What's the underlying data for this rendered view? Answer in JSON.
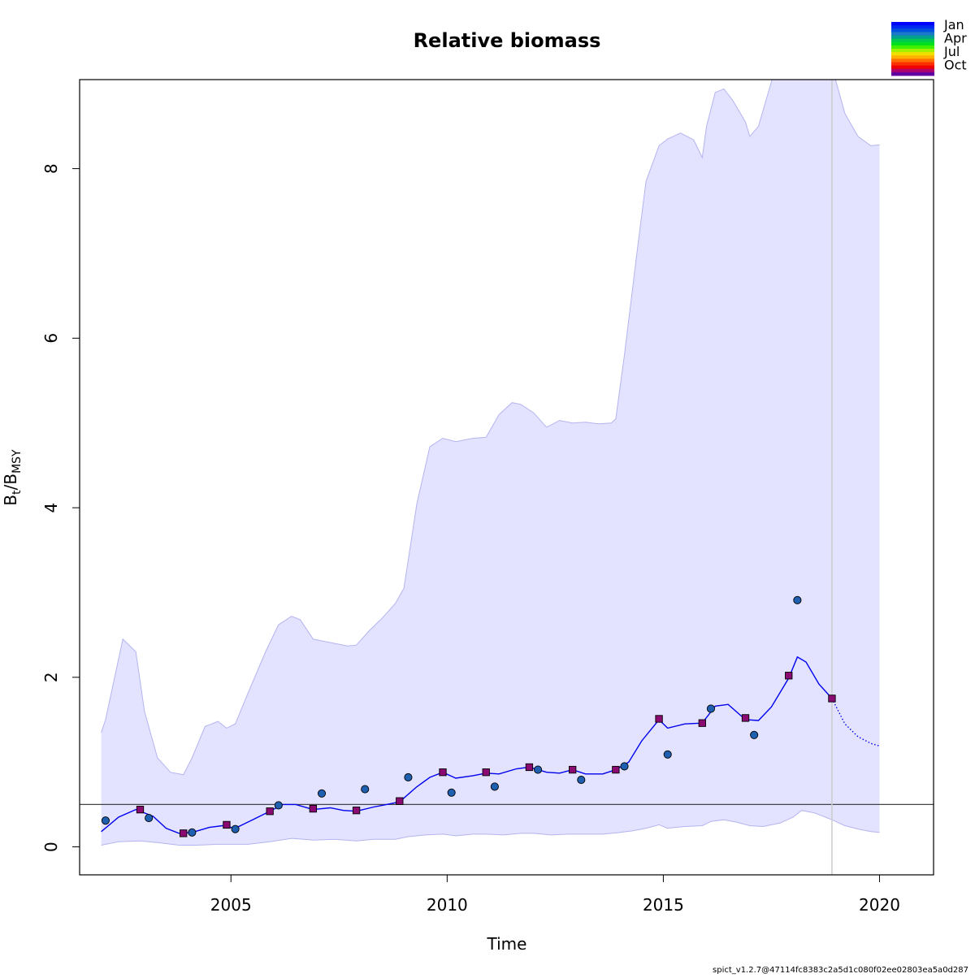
{
  "chart_data": {
    "type": "line",
    "title": "Relative biomass",
    "xlabel": "Time",
    "ylabel": "Bt/BMSY",
    "ylabel_parts": {
      "base1": "B",
      "sub1": "t",
      "sep": "/",
      "base2": "B",
      "sub2": "MSY"
    },
    "xlim": [
      2001.5,
      2021.25
    ],
    "ylim": [
      -0.33,
      9.05
    ],
    "x_ticks": [
      2005,
      2010,
      2015,
      2020
    ],
    "y_ticks": [
      0,
      2,
      4,
      6,
      8
    ],
    "grid": false,
    "reference_line_y": 0.5,
    "vertical_line_x": 2018.9,
    "estimate": {
      "name": "B/BMSY",
      "color": "#0000ee",
      "x": [
        2002.0,
        2002.4,
        2002.8,
        2003.2,
        2003.5,
        2003.8,
        2004.1,
        2004.5,
        2004.8,
        2005.1,
        2005.5,
        2005.9,
        2006.2,
        2006.5,
        2006.9,
        2007.3,
        2007.6,
        2007.9,
        2008.3,
        2008.6,
        2008.9,
        2009.3,
        2009.6,
        2009.9,
        2010.2,
        2010.6,
        2010.9,
        2011.2,
        2011.6,
        2011.9,
        2012.3,
        2012.6,
        2012.9,
        2013.2,
        2013.6,
        2013.9,
        2014.2,
        2014.5,
        2014.9,
        2015.1,
        2015.5,
        2015.9,
        2016.2,
        2016.5,
        2016.9,
        2017.2,
        2017.5,
        2017.9,
        2018.1,
        2018.3,
        2018.6,
        2018.9
      ],
      "y": [
        0.18,
        0.35,
        0.44,
        0.36,
        0.22,
        0.16,
        0.17,
        0.23,
        0.25,
        0.22,
        0.32,
        0.42,
        0.5,
        0.5,
        0.44,
        0.46,
        0.43,
        0.42,
        0.47,
        0.5,
        0.53,
        0.71,
        0.82,
        0.88,
        0.81,
        0.84,
        0.87,
        0.86,
        0.92,
        0.94,
        0.88,
        0.87,
        0.91,
        0.86,
        0.86,
        0.91,
        1.0,
        1.25,
        1.5,
        1.4,
        1.45,
        1.46,
        1.66,
        1.68,
        1.5,
        1.49,
        1.65,
        1.99,
        2.24,
        2.18,
        1.92,
        1.75
      ]
    },
    "forecast": {
      "x": [
        2018.9,
        2019.2,
        2019.5,
        2019.8,
        2020.0
      ],
      "y": [
        1.75,
        1.45,
        1.3,
        1.22,
        1.19
      ]
    },
    "ci_upper": {
      "x": [
        2002.0,
        2002.1,
        2002.5,
        2002.8,
        2003.0,
        2003.3,
        2003.6,
        2003.9,
        2004.1,
        2004.4,
        2004.7,
        2004.9,
        2005.1,
        2005.4,
        2005.8,
        2006.1,
        2006.4,
        2006.6,
        2006.9,
        2007.2,
        2007.7,
        2007.9,
        2008.2,
        2008.5,
        2008.8,
        2009.0,
        2009.3,
        2009.6,
        2009.9,
        2010.2,
        2010.6,
        2010.9,
        2011.2,
        2011.5,
        2011.7,
        2012.0,
        2012.3,
        2012.6,
        2012.9,
        2013.2,
        2013.5,
        2013.8,
        2013.9,
        2014.1,
        2014.4,
        2014.6,
        2014.9,
        2015.1,
        2015.4,
        2015.7,
        2015.9,
        2016.0,
        2016.2,
        2016.4,
        2016.6,
        2016.9,
        2017.0,
        2017.2,
        2017.4,
        2017.6,
        2017.9,
        2018.2,
        2018.6,
        2018.9,
        2019.2,
        2019.5,
        2019.8,
        2020.0
      ],
      "y": [
        1.35,
        1.5,
        2.45,
        2.3,
        1.6,
        1.05,
        0.88,
        0.85,
        1.05,
        1.42,
        1.48,
        1.4,
        1.45,
        1.82,
        2.3,
        2.62,
        2.72,
        2.68,
        2.45,
        2.42,
        2.37,
        2.38,
        2.55,
        2.7,
        2.87,
        3.05,
        4.05,
        4.72,
        4.82,
        4.78,
        4.82,
        4.83,
        5.1,
        5.24,
        5.22,
        5.12,
        4.95,
        5.03,
        5.0,
        5.01,
        4.99,
        5.0,
        5.05,
        5.8,
        7.05,
        7.85,
        8.27,
        8.35,
        8.42,
        8.34,
        8.13,
        8.5,
        8.9,
        8.94,
        8.81,
        8.55,
        8.38,
        8.5,
        8.85,
        9.2,
        9.9,
        9.7,
        9.6,
        9.2,
        8.65,
        8.38,
        8.27,
        8.28
      ]
    },
    "ci_lower": {
      "x": [
        2002.0,
        2002.4,
        2002.9,
        2003.3,
        2003.8,
        2004.2,
        2004.7,
        2005.0,
        2005.4,
        2005.9,
        2006.4,
        2006.9,
        2007.4,
        2007.9,
        2008.3,
        2008.8,
        2009.1,
        2009.5,
        2009.9,
        2010.2,
        2010.6,
        2010.9,
        2011.3,
        2011.7,
        2012.0,
        2012.4,
        2012.8,
        2013.1,
        2013.6,
        2014.0,
        2014.3,
        2014.6,
        2014.9,
        2015.1,
        2015.5,
        2015.9,
        2016.1,
        2016.4,
        2016.7,
        2017.0,
        2017.3,
        2017.7,
        2018.0,
        2018.2,
        2018.5,
        2018.9,
        2019.2,
        2019.5,
        2019.8,
        2020.0
      ],
      "y": [
        0.02,
        0.06,
        0.07,
        0.05,
        0.02,
        0.02,
        0.03,
        0.03,
        0.03,
        0.06,
        0.1,
        0.08,
        0.09,
        0.07,
        0.09,
        0.09,
        0.12,
        0.14,
        0.15,
        0.13,
        0.15,
        0.15,
        0.14,
        0.16,
        0.16,
        0.14,
        0.15,
        0.15,
        0.15,
        0.17,
        0.19,
        0.22,
        0.26,
        0.22,
        0.24,
        0.25,
        0.3,
        0.32,
        0.29,
        0.25,
        0.24,
        0.28,
        0.35,
        0.43,
        0.4,
        0.32,
        0.25,
        0.21,
        0.18,
        0.17
      ]
    },
    "observations_circle": {
      "color": "#1f5fb0",
      "x": [
        2002.1,
        2003.1,
        2004.1,
        2005.1,
        2006.1,
        2007.1,
        2008.1,
        2009.1,
        2010.1,
        2011.1,
        2012.1,
        2013.1,
        2014.1,
        2015.1,
        2016.1,
        2017.1,
        2018.1
      ],
      "y": [
        0.31,
        0.34,
        0.17,
        0.21,
        0.49,
        0.63,
        0.68,
        0.82,
        0.64,
        0.71,
        0.91,
        0.79,
        0.95,
        1.09,
        1.63,
        1.32,
        2.91
      ]
    },
    "observations_square": {
      "color": "#8b0a72",
      "x": [
        2002.9,
        2003.9,
        2004.9,
        2005.9,
        2006.9,
        2007.9,
        2008.9,
        2009.9,
        2010.9,
        2011.9,
        2012.9,
        2013.9,
        2014.9,
        2015.9,
        2016.9,
        2017.9,
        2018.9
      ],
      "y": [
        0.44,
        0.16,
        0.26,
        0.42,
        0.45,
        0.43,
        0.54,
        0.88,
        0.88,
        0.94,
        0.91,
        0.91,
        1.51,
        1.46,
        1.52,
        2.02,
        1.75
      ]
    },
    "legend": {
      "position": "top-right",
      "labels": [
        "Jan",
        "Apr",
        "Jul",
        "Oct"
      ],
      "colors": [
        "#0000ff",
        "#0028ee",
        "#0050e0",
        "#1e78c8",
        "#00a090",
        "#00c850",
        "#00e020",
        "#40f000",
        "#a0f000",
        "#f0e000",
        "#ffb000",
        "#ff7000",
        "#ff3000",
        "#ee0000",
        "#b0006e",
        "#6000a0"
      ]
    },
    "colors": {
      "ci_fill": "#e3e3ff",
      "ci_border": "#b4b4f0",
      "reference_line": "#444444",
      "vertical_line": "#cccccc"
    }
  },
  "footer": "spict_v1.2.7@47114fc8383c2a5d1c080f02ee02803ea5a0d287"
}
